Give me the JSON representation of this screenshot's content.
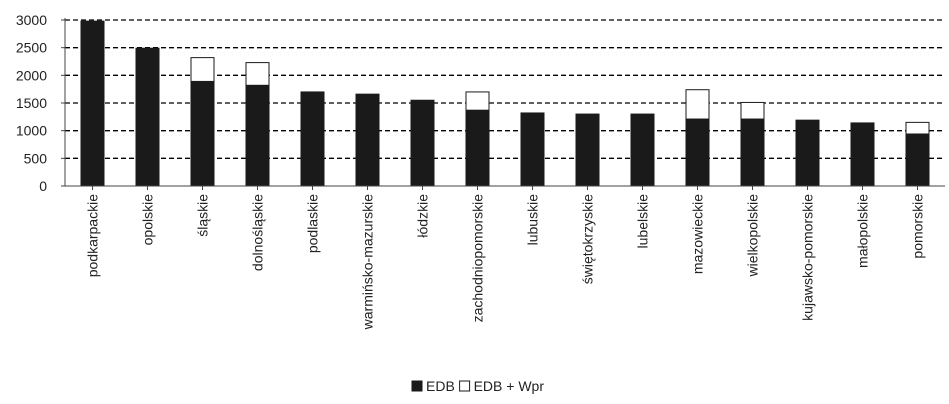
{
  "chart_data": {
    "type": "bar",
    "stacked": true,
    "categories": [
      "podkarpackie",
      "opolskie",
      "śląskie",
      "dolnośląskie",
      "podlaskie",
      "warmińsko-mazurskie",
      "łódzkie",
      "zachodniopomorskie",
      "lubuskie",
      "świętokrzyskie",
      "lubelskie",
      "mazowieckie",
      "wielkopolskie",
      "kujawsko-pomorskie",
      "małopolskie",
      "pomorskie"
    ],
    "series": [
      {
        "name": "EDB",
        "color": "#1a1a1a",
        "values": [
          2980,
          2490,
          1890,
          1820,
          1700,
          1660,
          1550,
          1370,
          1320,
          1300,
          1300,
          1210,
          1210,
          1190,
          1140,
          940
        ]
      },
      {
        "name": "EDB + Wpr",
        "color": "#ffffff",
        "values": [
          0,
          0,
          430,
          410,
          0,
          0,
          0,
          330,
          0,
          0,
          0,
          530,
          300,
          0,
          0,
          210
        ]
      }
    ],
    "yticks": [
      0,
      500,
      1000,
      1500,
      2000,
      2500,
      3000
    ],
    "ylim": [
      0,
      3000
    ],
    "grid": "dashed horizontal",
    "legend": {
      "position": "bottom",
      "entries": [
        "EDB",
        "EDB + Wpr"
      ]
    }
  }
}
